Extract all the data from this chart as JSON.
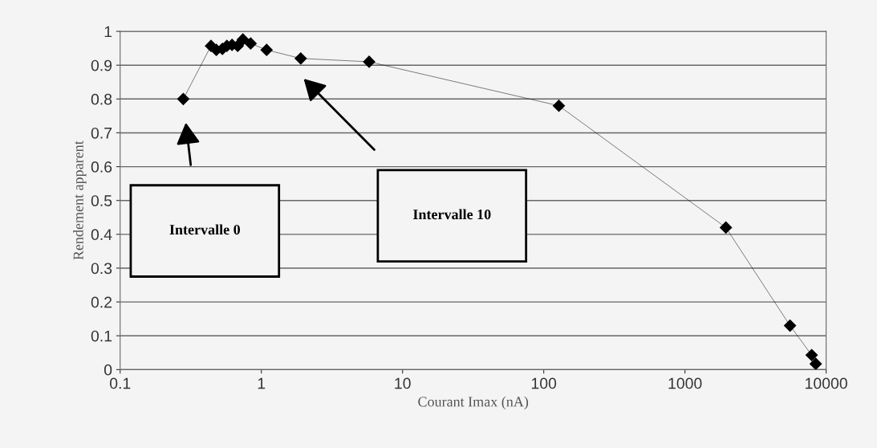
{
  "chart_data": {
    "type": "line",
    "xlabel": "Courant Imax (nA)",
    "ylabel": "Rendement apparent",
    "x": [
      0.28,
      0.44,
      0.48,
      0.53,
      0.57,
      0.62,
      0.68,
      0.74,
      0.84,
      1.09,
      1.9,
      5.8,
      128,
      1950,
      5550,
      7900,
      8440
    ],
    "series": [
      {
        "color": "#000000",
        "values": [
          0.8,
          0.957,
          0.945,
          0.948,
          0.957,
          0.96,
          0.957,
          0.976,
          0.964,
          0.945,
          0.92,
          0.91,
          0.78,
          0.42,
          0.13,
          0.043,
          0.017
        ]
      }
    ],
    "log": "x",
    "xlim": [
      0.1,
      10000
    ],
    "xticks": [
      0.1,
      1,
      10,
      100,
      1000,
      10000
    ],
    "ylim": [
      0,
      1
    ],
    "yticks": [
      0,
      0.1,
      0.2,
      0.3,
      0.4,
      0.5,
      0.6,
      0.7,
      0.8,
      0.9,
      1
    ],
    "grid": "y",
    "marker": "diamond",
    "line_style": "solid",
    "legend": false,
    "annotations": [
      "Intervalle 0",
      "Intervalle 10"
    ]
  }
}
